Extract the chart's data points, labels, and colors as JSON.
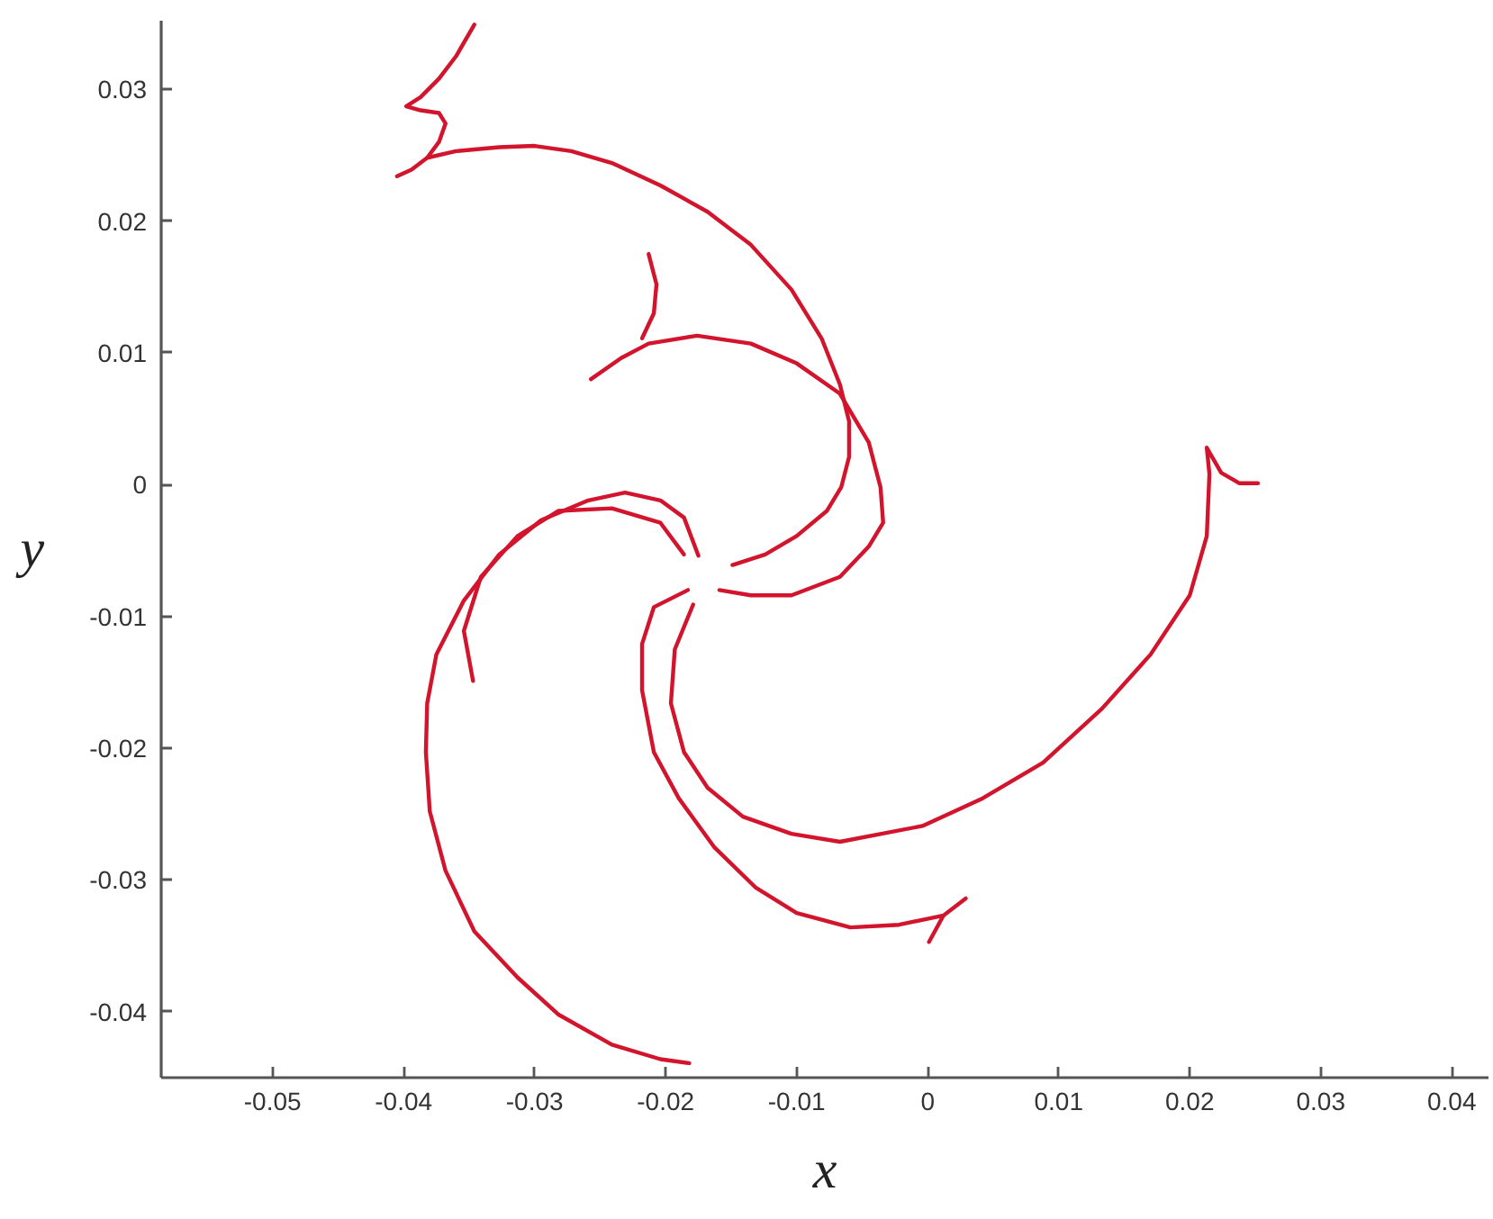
{
  "chart_data": {
    "type": "line",
    "xlabel": "x",
    "ylabel": "y",
    "xlim": [
      -0.0585,
      0.0428
    ],
    "ylim": [
      -0.045,
      0.0352
    ],
    "xticks": [
      -0.05,
      -0.04,
      -0.03,
      -0.02,
      -0.01,
      0,
      0.01,
      0.02,
      0.03,
      0.04
    ],
    "yticks": [
      -0.04,
      -0.03,
      -0.02,
      -0.01,
      0,
      0.01,
      0.02,
      0.03
    ],
    "line_style": "solid",
    "series": [
      {
        "color": "#d2142c",
        "x": [
          -0.0346,
          -0.036,
          -0.0373,
          -0.0387,
          -0.0398,
          -0.0387,
          -0.0373,
          -0.0368,
          -0.0373,
          -0.0382,
          -0.0394,
          -0.0405
        ],
        "values": [
          0.0349,
          0.0325,
          0.0308,
          0.0294,
          0.0287,
          0.0284,
          0.0282,
          0.0274,
          0.026,
          0.0248,
          0.0239,
          0.0234
        ]
      },
      {
        "color": "#d2142c",
        "x": [
          -0.0382,
          -0.036,
          -0.0327,
          -0.03,
          -0.0272,
          -0.0241,
          -0.0204,
          -0.0168,
          -0.0135,
          -0.0104,
          -0.0081,
          -0.0067,
          -0.006,
          -0.006,
          -0.0066,
          -0.0077,
          -0.01,
          -0.0124,
          -0.0149
        ],
        "values": [
          0.0248,
          0.0253,
          0.0256,
          0.0257,
          0.0253,
          0.0244,
          0.0227,
          0.0207,
          0.0182,
          0.0148,
          0.0111,
          0.0076,
          0.0048,
          0.0021,
          -0.0002,
          -0.002,
          -0.0039,
          -0.0053,
          -0.0061
        ]
      },
      {
        "color": "#d2142c",
        "x": [
          -0.0213,
          -0.0207,
          -0.0209,
          -0.0218
        ],
        "values": [
          0.0175,
          0.0152,
          0.013,
          0.0111
        ]
      },
      {
        "color": "#d2142c",
        "x": [
          -0.0257,
          -0.0234,
          -0.0213,
          -0.0176,
          -0.0135,
          -0.01,
          -0.0067,
          -0.0045,
          -0.0036,
          -0.0034,
          -0.0045,
          -0.0067,
          -0.0104,
          -0.0135,
          -0.0159
        ],
        "values": [
          0.008,
          0.0096,
          0.0107,
          0.0113,
          0.0107,
          0.0092,
          0.0069,
          0.0032,
          -0.0002,
          -0.0029,
          -0.0047,
          -0.007,
          -0.0084,
          -0.0084,
          -0.008
        ]
      },
      {
        "color": "#d2142c",
        "x": [
          -0.0175,
          -0.0186,
          -0.0204,
          -0.0231,
          -0.0259,
          -0.0295,
          -0.0327,
          -0.0354,
          -0.0375,
          -0.0382,
          -0.0383,
          -0.038,
          -0.0368,
          -0.0346,
          -0.0313,
          -0.0282,
          -0.0241,
          -0.0204,
          -0.0182
        ],
        "values": [
          -0.0054,
          -0.0025,
          -0.0012,
          -0.0006,
          -0.0012,
          -0.0027,
          -0.0053,
          -0.0088,
          -0.0129,
          -0.0166,
          -0.0203,
          -0.0248,
          -0.0293,
          -0.0339,
          -0.0374,
          -0.0402,
          -0.0425,
          -0.0436,
          -0.0439
        ]
      },
      {
        "color": "#d2142c",
        "x": [
          -0.0186,
          -0.0204,
          -0.0241,
          -0.0282,
          -0.0313,
          -0.0341,
          -0.0354,
          -0.0347
        ],
        "values": [
          -0.0053,
          -0.0029,
          -0.0018,
          -0.002,
          -0.0039,
          -0.007,
          -0.0111,
          -0.0149
        ]
      },
      {
        "color": "#d2142c",
        "x": [
          -0.0183,
          -0.0209,
          -0.0218,
          -0.0218,
          -0.0209,
          -0.019,
          -0.0163,
          -0.0131,
          -0.01,
          -0.0059,
          -0.0022,
          0.0012,
          0.0029,
          0.0012,
          0.0001
        ],
        "values": [
          -0.008,
          -0.0093,
          -0.0121,
          -0.0156,
          -0.0203,
          -0.0238,
          -0.0275,
          -0.0306,
          -0.0325,
          -0.0336,
          -0.0334,
          -0.0327,
          -0.0314,
          -0.0327,
          -0.0347
        ]
      },
      {
        "color": "#d2142c",
        "x": [
          -0.0179,
          -0.0193,
          -0.0196,
          -0.0186,
          -0.0168,
          -0.0141,
          -0.0104,
          -0.0067,
          -0.0004,
          0.0042,
          0.0088,
          0.0133,
          0.017,
          0.02,
          0.0213,
          0.0215,
          0.0213,
          0.0224,
          0.0238,
          0.0252
        ],
        "values": [
          -0.0091,
          -0.0125,
          -0.0166,
          -0.0203,
          -0.023,
          -0.0252,
          -0.0265,
          -0.0271,
          -0.0259,
          -0.0238,
          -0.0211,
          -0.017,
          -0.0129,
          -0.0084,
          -0.0039,
          0.0008,
          0.0028,
          0.0009,
          0.0001,
          0.0001
        ]
      }
    ]
  }
}
